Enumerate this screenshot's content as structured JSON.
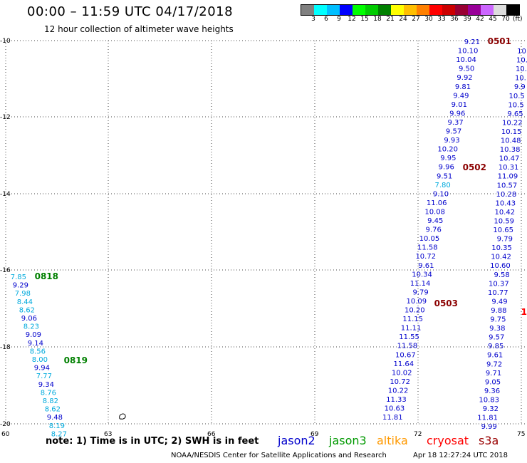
{
  "header": {
    "title": "00:00 – 11:59 UTC 04/17/2018",
    "subtitle": "12 hour collection of altimeter wave heights"
  },
  "legend": {
    "colors": [
      "#808080",
      "#00ffff",
      "#00bfff",
      "#0000ff",
      "#00ff00",
      "#00cc00",
      "#008000",
      "#ffff00",
      "#ffbf00",
      "#ff8000",
      "#ff0000",
      "#cc0000",
      "#990033",
      "#990099",
      "#cc66ff",
      "#dddddd",
      "#000000"
    ],
    "labels": [
      "3",
      "6",
      "9",
      "12",
      "15",
      "18",
      "21",
      "24",
      "27",
      "30",
      "33",
      "36",
      "39",
      "42",
      "45",
      "70"
    ],
    "unit": "(ft)"
  },
  "map": {
    "lon_ticks": [
      "60",
      "63",
      "66",
      "69",
      "72",
      "75"
    ],
    "lat_ticks": [
      "-10",
      "-12",
      "-14",
      "-16",
      "-18",
      "-20"
    ],
    "passes": [
      {
        "label": "0501",
        "color": "#8b0000"
      },
      {
        "label": "0502",
        "color": "#8b0000"
      },
      {
        "label": "0503",
        "color": "#8b0000"
      },
      {
        "label": "0818",
        "color": "#008000"
      },
      {
        "label": "0819",
        "color": "#008000"
      },
      {
        "label": "1",
        "color": "#ff0000"
      }
    ],
    "track_a": [
      "9.21",
      "10.10",
      "10.04",
      "9.50",
      "9.92",
      "9.81",
      "9.49",
      "9.01",
      "9.96",
      "9.37",
      "9.57",
      "9.93",
      "10.20",
      "9.95",
      "9.96",
      "9.51",
      "7.80",
      "9.10",
      "11.06",
      "10.08",
      "9.45",
      "9.76",
      "10.05",
      "11.58",
      "10.72",
      "9.61",
      "10.34",
      "11.14",
      "9.79",
      "10.09",
      "10.20",
      "11.15",
      "11.11",
      "11.55",
      "11.58",
      "10.67",
      "11.64",
      "10.02",
      "10.72",
      "10.22",
      "11.33",
      "10.63",
      "11.81"
    ],
    "track_b": [
      "10.",
      "10.",
      "10.",
      "10.",
      "9.9",
      "10.5",
      "10.5",
      "9.65",
      "10.22",
      "10.15",
      "10.48",
      "10.38",
      "10.47",
      "10.31",
      "11.09",
      "10.57",
      "10.28",
      "10.43",
      "10.42",
      "10.59",
      "10.65",
      "9.79",
      "10.35",
      "10.42",
      "10.60",
      "9.58",
      "10.37",
      "10.77",
      "9.49",
      "9.88",
      "9.75",
      "9.38",
      "9.57",
      "9.85",
      "9.61",
      "9.72",
      "9.71",
      "9.05",
      "9.36",
      "10.83",
      "9.32",
      "11.81",
      "9.99"
    ],
    "track_c": [
      "7.85",
      "9.29",
      "7.98",
      "8.44",
      "8.62",
      "9.06",
      "8.23",
      "9.09",
      "9.14",
      "8.56",
      "8.00",
      "9.94",
      "7.77",
      "9.34",
      "8.76",
      "8.82",
      "8.62",
      "9.48",
      "8.19",
      "8.27"
    ]
  },
  "footer": {
    "note": "note:  1) Time is in UTC;  2) SWH is in feet",
    "satellites": [
      {
        "name": "jason2",
        "color": "#0000cc"
      },
      {
        "name": "jason3",
        "color": "#009900"
      },
      {
        "name": "altika",
        "color": "#ff9900"
      },
      {
        "name": "cryosat",
        "color": "#ff0000"
      },
      {
        "name": "s3a",
        "color": "#990000"
      }
    ],
    "credit": "NOAA/NESDIS Center for Satellite Applications and Research",
    "timestamp": "Apr 18 12:27:24 UTC 2018"
  }
}
